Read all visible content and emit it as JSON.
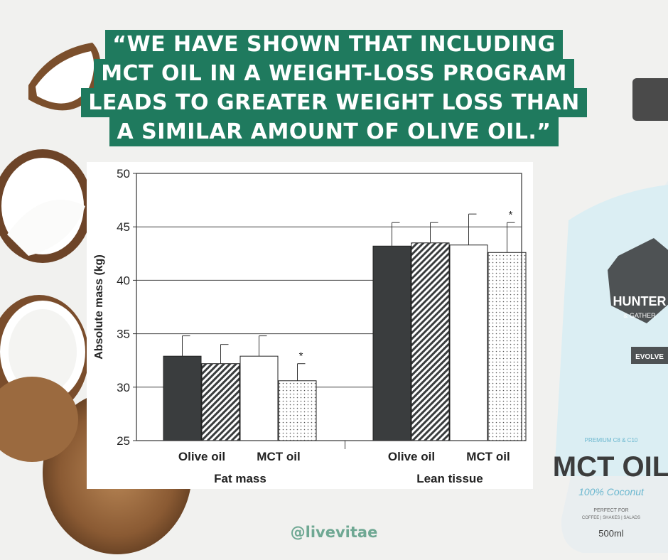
{
  "quote": {
    "lines": [
      "“WE HAVE SHOWN THAT INCLUDING",
      "MCT OIL IN A WEIGHT-LOSS PROGRAM",
      "LEADS TO GREATER WEIGHT LOSS THAN",
      "A SIMILAR AMOUNT OF OLIVE OIL.”"
    ]
  },
  "handle": "@livevitae",
  "bottle": {
    "brand": "HUNTER",
    "brand_sub": "& GATHER",
    "badge": "EVOLVE",
    "premium": "PREMIUM C8 & C10",
    "product": "MCT OIL",
    "coconut": "100% Coconut",
    "perfect_for": "PERFECT FOR",
    "uses": "COFFEE | SHAKES | SALADS",
    "volume": "500ml"
  },
  "colors": {
    "banner": "#1f7a5e",
    "handle": "#6fa893",
    "bar_dark": "#3a3d3e"
  },
  "chart_data": {
    "type": "bar",
    "ylabel": "Absolute mass (kg)",
    "ylim": [
      25,
      50
    ],
    "yticks": [
      25,
      30,
      35,
      40,
      45,
      50
    ],
    "grid": true,
    "groups": [
      {
        "label": "Fat mass",
        "subgroups": [
          {
            "label": "Olive oil",
            "bars": [
              {
                "value": 32.9,
                "error": 1.9,
                "pattern": "solid-dark",
                "star": false
              },
              {
                "value": 32.2,
                "error": 1.8,
                "pattern": "diagonal-hatch",
                "star": false
              }
            ]
          },
          {
            "label": "MCT oil",
            "bars": [
              {
                "value": 32.9,
                "error": 1.9,
                "pattern": "white",
                "star": false
              },
              {
                "value": 30.6,
                "error": 1.6,
                "pattern": "dotted",
                "star": true
              }
            ]
          }
        ]
      },
      {
        "label": "Lean tissue",
        "subgroups": [
          {
            "label": "Olive oil",
            "bars": [
              {
                "value": 43.2,
                "error": 2.2,
                "pattern": "solid-dark",
                "star": false
              },
              {
                "value": 43.5,
                "error": 1.9,
                "pattern": "diagonal-hatch",
                "star": false
              }
            ]
          },
          {
            "label": "MCT oil",
            "bars": [
              {
                "value": 43.3,
                "error": 2.9,
                "pattern": "white",
                "star": false
              },
              {
                "value": 42.6,
                "error": 2.8,
                "pattern": "dotted",
                "star": true
              }
            ]
          }
        ]
      }
    ],
    "significance_marker": "*"
  }
}
